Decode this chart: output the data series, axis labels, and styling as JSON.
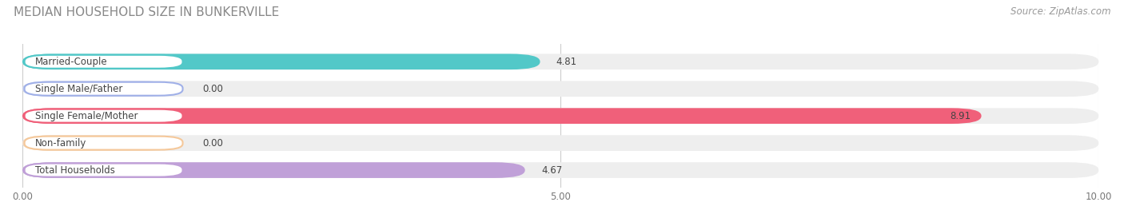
{
  "title": "MEDIAN HOUSEHOLD SIZE IN BUNKERVILLE",
  "source": "Source: ZipAtlas.com",
  "categories": [
    "Married-Couple",
    "Single Male/Father",
    "Single Female/Mother",
    "Non-family",
    "Total Households"
  ],
  "values": [
    4.81,
    0.0,
    8.91,
    0.0,
    4.67
  ],
  "bar_colors": [
    "#52c8c8",
    "#a0b0e8",
    "#f0607a",
    "#f5c89a",
    "#c0a0d8"
  ],
  "bar_bg_color": "#eeeeee",
  "xlim": [
    0,
    10.0
  ],
  "xticks": [
    0.0,
    5.0,
    10.0
  ],
  "xtick_labels": [
    "0.00",
    "5.00",
    "10.00"
  ],
  "title_fontsize": 11,
  "source_fontsize": 8.5,
  "label_fontsize": 8.5,
  "value_fontsize": 8.5,
  "tick_fontsize": 8.5,
  "figsize": [
    14.06,
    2.68
  ],
  "dpi": 100
}
